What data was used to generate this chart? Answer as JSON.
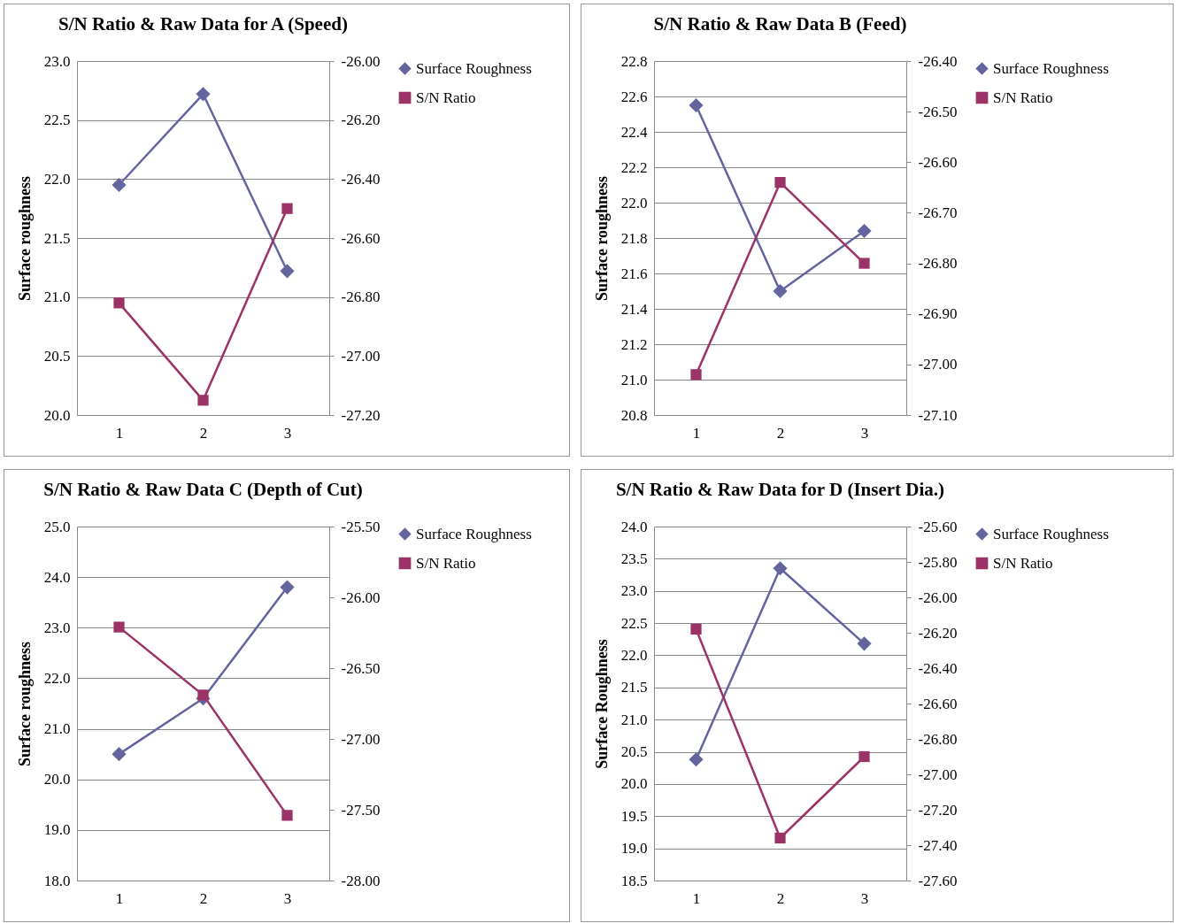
{
  "chart_data": [
    {
      "type": "line",
      "title": "S/N Ratio & Raw Data for A (Speed)",
      "ylabel": "Surface roughness",
      "categories": [
        "1",
        "2",
        "3"
      ],
      "series": [
        {
          "name": "Surface Roughness",
          "color": "#64649f",
          "marker": "diamond",
          "values": [
            21.95,
            22.72,
            21.22
          ]
        },
        {
          "name": "S/N  Ratio",
          "color": "#9b3366",
          "marker": "square",
          "axis": "y2",
          "values": [
            -26.82,
            -27.15,
            -26.5
          ]
        }
      ],
      "ylim": [
        20,
        23
      ],
      "yticks": [
        {
          "value": 20,
          "label": "20.0"
        },
        {
          "value": 20.5,
          "label": "20.5"
        },
        {
          "value": 21,
          "label": "21.0"
        },
        {
          "value": 21.5,
          "label": "21.5"
        },
        {
          "value": 22,
          "label": "22.0"
        },
        {
          "value": 22.5,
          "label": "22.5"
        },
        {
          "value": 23,
          "label": "23.0"
        }
      ],
      "y2lim": [
        -27.2,
        -26
      ],
      "y2ticks": [
        {
          "value": -27.2,
          "label": "-27.20"
        },
        {
          "value": -27,
          "label": "-27.00"
        },
        {
          "value": -26.8,
          "label": "-26.80"
        },
        {
          "value": -26.6,
          "label": "-26.60"
        },
        {
          "value": -26.4,
          "label": "-26.40"
        },
        {
          "value": -26.2,
          "label": "-26.20"
        },
        {
          "value": -26,
          "label": "-26.00"
        }
      ],
      "grid": "y",
      "legend": "right"
    },
    {
      "type": "line",
      "title": "S/N Ratio & Raw Data B (Feed)",
      "ylabel": "Surface roughness",
      "categories": [
        "1",
        "2",
        "3"
      ],
      "series": [
        {
          "name": "Surface Roughness",
          "color": "#64649f",
          "marker": "diamond",
          "values": [
            22.55,
            21.5,
            21.84
          ]
        },
        {
          "name": "S/N  Ratio",
          "color": "#9b3366",
          "marker": "square",
          "axis": "y2",
          "values": [
            -27.02,
            -26.64,
            -26.8
          ]
        }
      ],
      "ylim": [
        20.8,
        22.8
      ],
      "yticks": [
        {
          "value": 20.8,
          "label": "20.8"
        },
        {
          "value": 21,
          "label": "21.0"
        },
        {
          "value": 21.2,
          "label": "21.2"
        },
        {
          "value": 21.4,
          "label": "21.4"
        },
        {
          "value": 21.6,
          "label": "21.6"
        },
        {
          "value": 21.8,
          "label": "21.8"
        },
        {
          "value": 22,
          "label": "22.0"
        },
        {
          "value": 22.2,
          "label": "22.2"
        },
        {
          "value": 22.4,
          "label": "22.4"
        },
        {
          "value": 22.6,
          "label": "22.6"
        },
        {
          "value": 22.8,
          "label": "22.8"
        }
      ],
      "y2lim": [
        -27.1,
        -26.4
      ],
      "y2ticks": [
        {
          "value": -27.1,
          "label": "-27.10"
        },
        {
          "value": -27,
          "label": "-27.00"
        },
        {
          "value": -26.9,
          "label": "-26.90"
        },
        {
          "value": -26.8,
          "label": "-26.80"
        },
        {
          "value": -26.7,
          "label": "-26.70"
        },
        {
          "value": -26.6,
          "label": "-26.60"
        },
        {
          "value": -26.5,
          "label": "-26.50"
        },
        {
          "value": -26.4,
          "label": "-26.40"
        }
      ],
      "grid": "y",
      "legend": "right"
    },
    {
      "type": "line",
      "title": "S/N Ratio & Raw Data C  (Depth of Cut)",
      "ylabel": "Surface roughness",
      "categories": [
        "1",
        "2",
        "3"
      ],
      "series": [
        {
          "name": "Surface Roughness",
          "color": "#64649f",
          "marker": "diamond",
          "values": [
            20.5,
            21.6,
            23.8
          ]
        },
        {
          "name": "S/N Ratio",
          "color": "#9b3366",
          "marker": "square",
          "axis": "y2",
          "values": [
            -26.21,
            -26.69,
            -27.54
          ]
        }
      ],
      "ylim": [
        18,
        25
      ],
      "yticks": [
        {
          "value": 18,
          "label": "18.0"
        },
        {
          "value": 19,
          "label": "19.0"
        },
        {
          "value": 20,
          "label": "20.0"
        },
        {
          "value": 21,
          "label": "21.0"
        },
        {
          "value": 22,
          "label": "22.0"
        },
        {
          "value": 23,
          "label": "23.0"
        },
        {
          "value": 24,
          "label": "24.0"
        },
        {
          "value": 25,
          "label": "25.0"
        }
      ],
      "y2lim": [
        -28,
        -25.5
      ],
      "y2ticks": [
        {
          "value": -28,
          "label": "-28.00"
        },
        {
          "value": -27.5,
          "label": "-27.50"
        },
        {
          "value": -27,
          "label": "-27.00"
        },
        {
          "value": -26.5,
          "label": "-26.50"
        },
        {
          "value": -26,
          "label": "-26.00"
        },
        {
          "value": -25.5,
          "label": "-25.50"
        }
      ],
      "grid": "y",
      "legend": "right"
    },
    {
      "type": "line",
      "title": "S/N Ratio & Raw Data for D (Insert Dia.)",
      "ylabel": "Surface Roughness",
      "categories": [
        "1",
        "2",
        "3"
      ],
      "series": [
        {
          "name": "Surface Roughness",
          "color": "#64649f",
          "marker": "diamond",
          "values": [
            20.38,
            23.35,
            22.18
          ]
        },
        {
          "name": "S/N  Ratio",
          "color": "#9b3366",
          "marker": "square",
          "axis": "y2",
          "values": [
            -26.18,
            -27.36,
            -26.9
          ]
        }
      ],
      "ylim": [
        18.5,
        24
      ],
      "yticks": [
        {
          "value": 18.5,
          "label": "18.5"
        },
        {
          "value": 19,
          "label": "19.0"
        },
        {
          "value": 19.5,
          "label": "19.5"
        },
        {
          "value": 20,
          "label": "20.0"
        },
        {
          "value": 20.5,
          "label": "20.5"
        },
        {
          "value": 21,
          "label": "21.0"
        },
        {
          "value": 21.5,
          "label": "21.5"
        },
        {
          "value": 22,
          "label": "22.0"
        },
        {
          "value": 22.5,
          "label": "22.5"
        },
        {
          "value": 23,
          "label": "23.0"
        },
        {
          "value": 23.5,
          "label": "23.5"
        },
        {
          "value": 24,
          "label": "24.0"
        }
      ],
      "y2lim": [
        -27.6,
        -25.6
      ],
      "y2ticks": [
        {
          "value": -27.6,
          "label": "-27.60"
        },
        {
          "value": -27.4,
          "label": "-27.40"
        },
        {
          "value": -27.2,
          "label": "-27.20"
        },
        {
          "value": -27,
          "label": "-27.00"
        },
        {
          "value": -26.8,
          "label": "-26.80"
        },
        {
          "value": -26.6,
          "label": "-26.60"
        },
        {
          "value": -26.4,
          "label": "-26.40"
        },
        {
          "value": -26.2,
          "label": "-26.20"
        },
        {
          "value": -26,
          "label": "-26.00"
        },
        {
          "value": -25.8,
          "label": "-25.80"
        },
        {
          "value": -25.6,
          "label": "-25.60"
        }
      ],
      "grid": "y",
      "legend": "right"
    }
  ]
}
